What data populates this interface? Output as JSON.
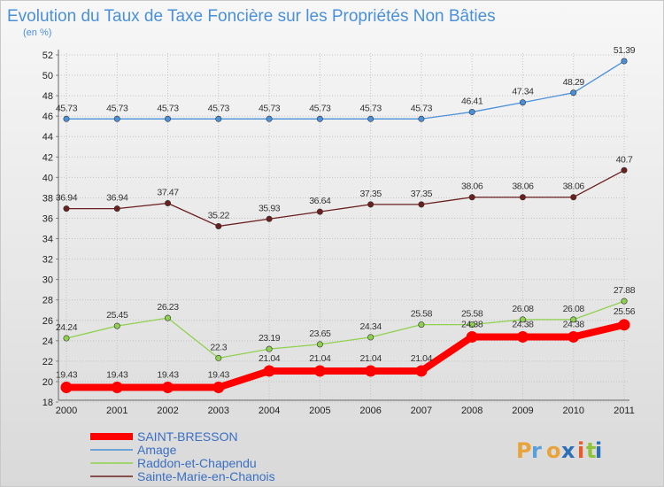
{
  "chart_data": {
    "type": "line",
    "title": "Evolution du Taux de Taxe Foncière sur les Propriétés Non Bâties",
    "ylabel": "(en %)",
    "xlabel": "",
    "ylim": [
      18,
      52
    ],
    "yticks": [
      18,
      20,
      22,
      24,
      26,
      28,
      30,
      32,
      34,
      36,
      38,
      40,
      42,
      44,
      46,
      48,
      50,
      52
    ],
    "categories": [
      "2000",
      "2001",
      "2002",
      "2003",
      "2004",
      "2005",
      "2006",
      "2007",
      "2008",
      "2009",
      "2010",
      "2011"
    ],
    "series": [
      {
        "name": "SAINT-BRESSON",
        "color": "#ff0000",
        "values": [
          19.43,
          19.43,
          19.43,
          19.43,
          21.04,
          21.04,
          21.04,
          21.04,
          24.38,
          24.38,
          24.38,
          25.56
        ],
        "labels": [
          "19.43",
          "19.43",
          "19.43",
          "19.43",
          "21.04",
          "21.04",
          "21.04",
          "21.04",
          "24.38",
          "24.38",
          "24.38",
          "25.56"
        ]
      },
      {
        "name": "Amage",
        "color": "#4a90d9",
        "values": [
          45.73,
          45.73,
          45.73,
          45.73,
          45.73,
          45.73,
          45.73,
          45.73,
          46.41,
          47.34,
          48.29,
          51.39
        ],
        "labels": [
          "45.73",
          "45.73",
          "45.73",
          "45.73",
          "45.73",
          "45.73",
          "45.73",
          "45.73",
          "46.41",
          "47.34",
          "48.29",
          "51.39"
        ]
      },
      {
        "name": "Raddon-et-Chapendu",
        "color": "#8fd14f",
        "values": [
          24.24,
          25.45,
          26.23,
          22.3,
          23.19,
          23.65,
          24.34,
          25.58,
          25.58,
          26.08,
          26.08,
          27.88
        ],
        "labels": [
          "24.24",
          "25.45",
          "26.23",
          "22.3",
          "23.19",
          "23.65",
          "24.34",
          "25.58",
          "25.58",
          "26.08",
          "26.08",
          "27.88"
        ]
      },
      {
        "name": "Sainte-Marie-en-Chanois",
        "color": "#6b1f1f",
        "values": [
          36.94,
          36.94,
          37.47,
          35.22,
          35.93,
          36.64,
          37.35,
          37.35,
          38.06,
          38.06,
          38.06,
          40.7
        ],
        "labels": [
          "36.94",
          "36.94",
          "37.47",
          "35.22",
          "35.93",
          "36.64",
          "37.35",
          "37.35",
          "38.06",
          "38.06",
          "38.06",
          "40.7"
        ]
      }
    ],
    "legend_position": "bottom-left"
  },
  "logo": {
    "text": "Proxiti"
  }
}
